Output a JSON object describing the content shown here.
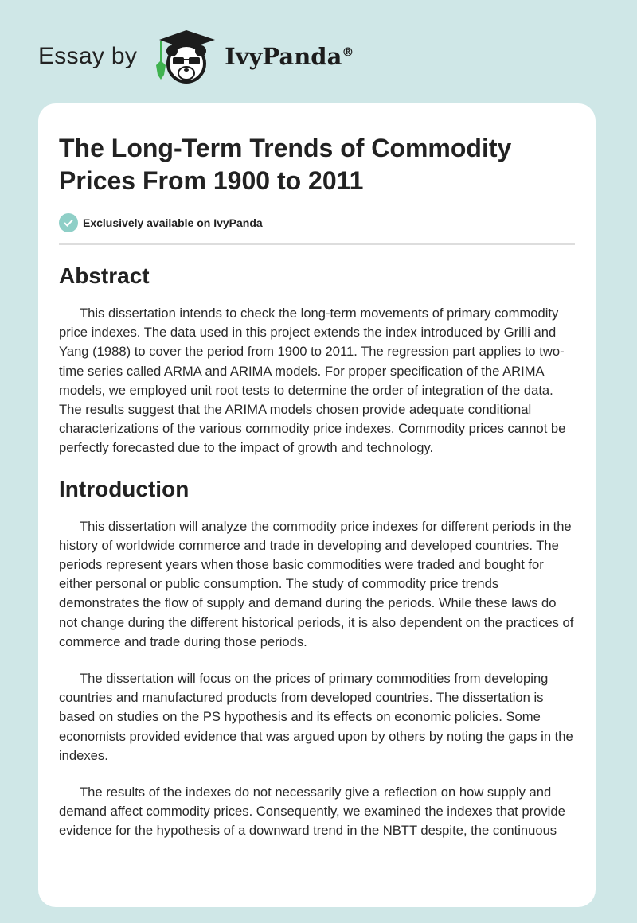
{
  "header": {
    "prefix": "Essay by",
    "brand": "IvyPanda",
    "registered": "®"
  },
  "article": {
    "title": "The Long-Term Trends of Commodity Prices From 1900 to 2011",
    "exclusive": "Exclusively available on IvyPanda",
    "sections": [
      {
        "heading": "Abstract",
        "paragraphs": [
          "This dissertation intends to check the long-term movements of primary commodity price indexes. The data used in this project extends the index introduced by Grilli and Yang (1988) to cover the period from 1900 to 2011. The regression part applies to two-time series called ARMA and ARIMA models. For proper specification of the ARIMA models, we employed unit root tests to determine the order of integration of the data. The results suggest that the ARIMA models chosen provide adequate conditional characterizations of the various commodity price indexes. Commodity prices cannot be perfectly forecasted due to the impact of growth and technology."
        ]
      },
      {
        "heading": "Introduction",
        "paragraphs": [
          "This dissertation will analyze the commodity price indexes for different periods in the history of worldwide commerce and trade in developing and developed countries. The periods represent years when those basic commodities were traded and bought for either personal or public consumption. The study of commodity price trends demonstrates the flow of supply and demand during the periods. While these laws do not change during the different historical periods, it is also dependent on the practices of commerce and trade during those periods.",
          "The dissertation will focus on the prices of primary commodities from developing countries and manufactured products from developed countries. The dissertation is based on studies on the PS hypothesis and its effects on economic policies. Some economists provided evidence that was argued upon by others by noting the gaps in the indexes.",
          "The results of the indexes do not necessarily give a reflection on how supply and demand affect commodity prices. Consequently, we examined the indexes that provide evidence for the hypothesis of a downward trend in the NBTT despite, the continuous"
        ]
      }
    ]
  }
}
